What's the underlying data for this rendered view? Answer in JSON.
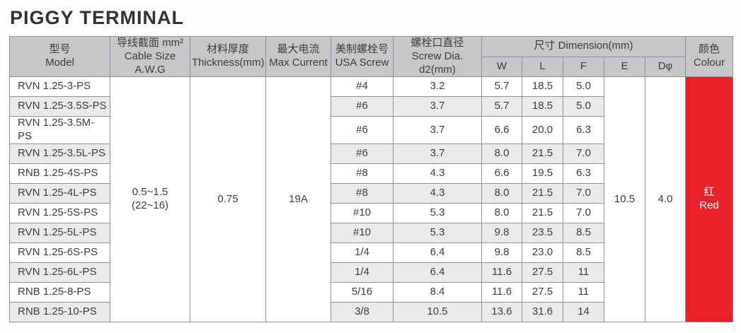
{
  "page_title": "PIGGY TERMINAL",
  "colors": {
    "header_bg": "#c6c7c9",
    "row_alt_bg": "#eaeaea",
    "border": "#8f9194",
    "accent_red": "#e8212a",
    "text": "#3d3d3d"
  },
  "table": {
    "headers": {
      "model": "型号\nModel",
      "cable_size": "导线截面 mm²\nCable Size A.W.G",
      "thickness": "材料厚度\nThickness(mm)",
      "max_current": "最大电流\nMax Current",
      "usa_screw": "美制螺栓号\nUSA Screw",
      "screw_dia": "螺栓口直径\nScrew Dia. d2(mm)",
      "dimension_group": "尺寸 Dimension(mm)",
      "dim_cols": [
        "W",
        "L",
        "F",
        "E",
        "Dφ"
      ],
      "colour": "颜色\nColour"
    },
    "merged": {
      "cable_size": "0.5~1.5\n(22~16)",
      "thickness": "0.75",
      "max_current": "19A",
      "e": "10.5",
      "d_phi": "4.0",
      "colour": "红\nRed"
    },
    "rows": [
      {
        "model": "RVN 1.25-3-PS",
        "usa_screw": "#4",
        "screw_dia": "3.2",
        "w": "5.7",
        "l": "18.5",
        "f": "5.0"
      },
      {
        "model": "RVN 1.25-3.5S-PS",
        "usa_screw": "#6",
        "screw_dia": "3.7",
        "w": "5.7",
        "l": "18.5",
        "f": "5.0"
      },
      {
        "model": "RVN 1.25-3.5M-PS",
        "usa_screw": "#6",
        "screw_dia": "3.7",
        "w": "6.6",
        "l": "20.0",
        "f": "6.3"
      },
      {
        "model": "RVN 1.25-3.5L-PS",
        "usa_screw": "#6",
        "screw_dia": "3.7",
        "w": "8.0",
        "l": "21.5",
        "f": "7.0"
      },
      {
        "model": "RNB 1.25-4S-PS",
        "usa_screw": "#8",
        "screw_dia": "4.3",
        "w": "6.6",
        "l": "19.5",
        "f": "6.3"
      },
      {
        "model": "RVN 1.25-4L-PS",
        "usa_screw": "#8",
        "screw_dia": "4.3",
        "w": "8.0",
        "l": "21.5",
        "f": "7.0"
      },
      {
        "model": "RVN 1.25-5S-PS",
        "usa_screw": "#10",
        "screw_dia": "5.3",
        "w": "8.0",
        "l": "21.5",
        "f": "7.0"
      },
      {
        "model": "RVN 1.25-5L-PS",
        "usa_screw": "#10",
        "screw_dia": "5.3",
        "w": "9.8",
        "l": "23.5",
        "f": "8.5"
      },
      {
        "model": "RVN 1.25-6S-PS",
        "usa_screw": "1/4",
        "screw_dia": "6.4",
        "w": "9.8",
        "l": "23.0",
        "f": "8.5"
      },
      {
        "model": "RVN 1.25-6L-PS",
        "usa_screw": "1/4",
        "screw_dia": "6.4",
        "w": "11.6",
        "l": "27.5",
        "f": "11"
      },
      {
        "model": "RNB 1.25-8-PS",
        "usa_screw": "5/16",
        "screw_dia": "8.4",
        "w": "11.6",
        "l": "27.5",
        "f": "11"
      },
      {
        "model": "RNB 1.25-10-PS",
        "usa_screw": "3/8",
        "screw_dia": "10.5",
        "w": "13.6",
        "l": "31.6",
        "f": "14"
      }
    ]
  }
}
